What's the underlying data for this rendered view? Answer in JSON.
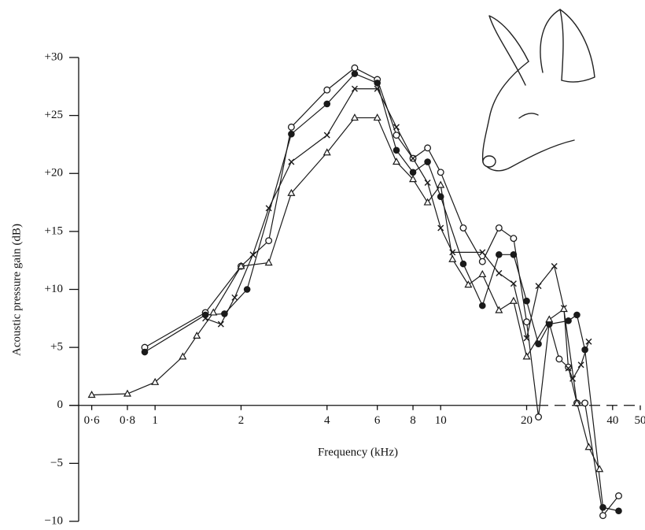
{
  "chart_data": {
    "type": "line",
    "x_label": "Frequency (kHz)",
    "y_label": "Acoustic pressure gain (dB)",
    "xscale": "log",
    "xlim": [
      0.54,
      50
    ],
    "ylim": [
      -10,
      30
    ],
    "xticks": [
      {
        "value": 0.6,
        "label": "0·6"
      },
      {
        "value": 0.8,
        "label": "0·8"
      },
      1,
      2,
      4,
      6,
      8,
      10,
      20,
      40,
      50
    ],
    "yticks": [
      {
        "value": 30,
        "label": "+30"
      },
      {
        "value": 25,
        "label": "+25"
      },
      {
        "value": 20,
        "label": "+20"
      },
      {
        "value": 15,
        "label": "+15"
      },
      {
        "value": 10,
        "label": "+10"
      },
      {
        "value": 5,
        "label": "+5"
      },
      0,
      {
        "value": -5,
        "label": "−5"
      },
      {
        "value": -10,
        "label": "−10"
      }
    ],
    "color": "#1a1a1a",
    "series": [
      {
        "marker": "open-circle",
        "x": [
          0.92,
          1.5,
          2,
          2.5,
          3,
          4,
          5,
          6,
          7,
          8,
          9,
          10,
          12,
          14,
          16,
          18,
          20,
          22,
          24,
          26,
          28,
          30,
          32,
          37,
          42
        ],
        "values": [
          5,
          8,
          12,
          14.2,
          24,
          27.2,
          29.1,
          28.1,
          23.3,
          21.3,
          22.2,
          20.1,
          15.3,
          12.4,
          15.3,
          14.4,
          7.2,
          -1,
          7.1,
          4,
          3.3,
          0.2,
          0.2,
          -9.5,
          -7.8
        ]
      },
      {
        "marker": "filled-circle",
        "x": [
          0.92,
          1.5,
          1.75,
          2.1,
          3,
          4,
          5,
          6,
          7,
          8,
          9,
          10,
          12,
          14,
          16,
          18,
          20,
          22,
          24,
          28,
          30,
          32,
          37,
          42
        ],
        "values": [
          4.6,
          7.8,
          7.9,
          10,
          23.4,
          26,
          28.6,
          27.8,
          22,
          20.1,
          21,
          18,
          12.2,
          8.6,
          13,
          13,
          9,
          5.3,
          7,
          7.3,
          7.8,
          4.8,
          -8.8,
          -9.1
        ]
      },
      {
        "marker": "cross",
        "x": [
          1.5,
          1.7,
          1.9,
          2.2,
          2.5,
          3,
          4,
          5,
          6,
          7,
          8,
          9,
          10,
          11,
          14,
          16,
          18,
          20,
          22,
          25,
          27,
          28,
          29,
          31,
          33
        ],
        "values": [
          7.5,
          7,
          9.3,
          13,
          17,
          21,
          23.3,
          27.3,
          27.3,
          24,
          21.3,
          19.2,
          15.3,
          13.2,
          13.2,
          11.4,
          10.5,
          5.8,
          10.3,
          12,
          8.4,
          3.2,
          2.3,
          3.5,
          5.5
        ]
      },
      {
        "marker": "triangle",
        "x": [
          0.6,
          0.8,
          1,
          1.25,
          1.4,
          1.6,
          2,
          2.5,
          3,
          4,
          5,
          6,
          7,
          8,
          9,
          10,
          11,
          12.5,
          14,
          16,
          18,
          20,
          24,
          27,
          30,
          33,
          36
        ],
        "values": [
          0.9,
          1,
          2,
          4.2,
          6,
          8,
          12,
          12.3,
          18.3,
          21.8,
          24.8,
          24.8,
          21,
          19.5,
          17.5,
          19,
          12.6,
          10.4,
          11.3,
          8.2,
          9,
          4.2,
          7.4,
          8.3,
          0.2,
          -3.6,
          -5.5
        ]
      }
    ]
  }
}
